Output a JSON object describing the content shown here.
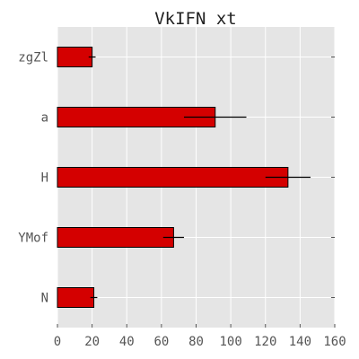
{
  "chart_data": {
    "type": "bar",
    "orientation": "horizontal",
    "title": "VkIFN xt",
    "categories": [
      "zgZl",
      "a",
      "H",
      "YMof",
      "N"
    ],
    "values": [
      20,
      91,
      133,
      67,
      21
    ],
    "errors": [
      2,
      18,
      13,
      6,
      2
    ],
    "xlim": [
      0,
      160
    ],
    "x_ticks": [
      "0",
      "20",
      "40",
      "60",
      "80",
      "100",
      "120",
      "140",
      "160"
    ],
    "grid": true,
    "bar_color": "#d40000",
    "background_color": "#e5e5e5",
    "grid_color": "#ffffff"
  }
}
